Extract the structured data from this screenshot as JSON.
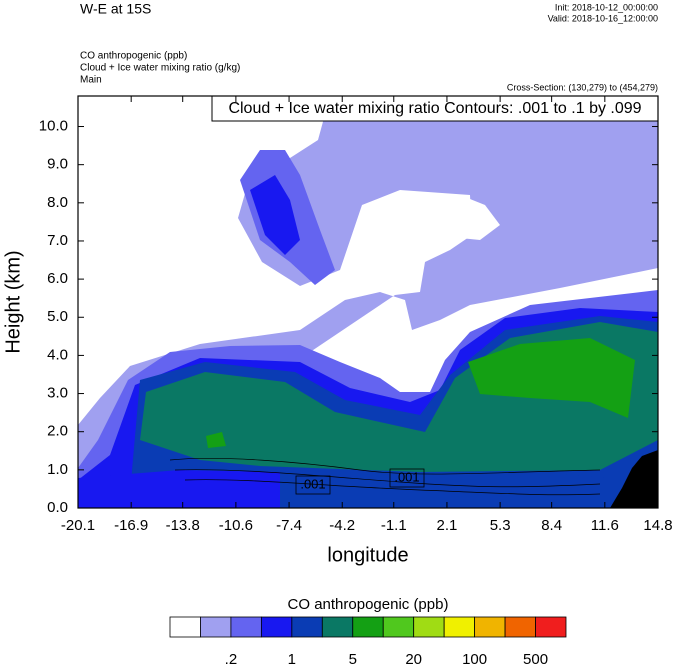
{
  "chart_data": {
    "type": "contour",
    "title": "W-E at 15S",
    "init": "Init: 2018-10-12_00:00:00",
    "valid": "Valid: 2018-10-16_12:00:00",
    "fields": [
      "CO anthropogenic   (ppb)",
      "Cloud + Ice water mixing ratio   (g/kg)",
      "Main"
    ],
    "cross_section": "Cross-Section: (130,279) to (454,279)",
    "contour_info": "Cloud + Ice water mixing ratio Contours: .001 to .1 by .099",
    "contour_line_labels": [
      ".001",
      ".001"
    ],
    "xlabel": "longitude",
    "ylabel": "Height (km)",
    "xlim": [
      -20.1,
      14.8
    ],
    "xticks": [
      -20.1,
      -16.9,
      -13.8,
      -10.6,
      -7.4,
      -4.2,
      -1.1,
      2.1,
      5.3,
      8.4,
      11.6,
      14.8
    ],
    "ylim": [
      0,
      10.8
    ],
    "yticks": [
      {
        "value": 0,
        "label": "0.0"
      },
      {
        "value": 1,
        "label": "1.0"
      },
      {
        "value": 2,
        "label": "2.0"
      },
      {
        "value": 3,
        "label": "3.0"
      },
      {
        "value": 4,
        "label": "4.0"
      },
      {
        "value": 5,
        "label": "5.0"
      },
      {
        "value": 6,
        "label": "6.0"
      },
      {
        "value": 7,
        "label": "7.0"
      },
      {
        "value": 8,
        "label": "8.0"
      },
      {
        "value": 9,
        "label": "9.0"
      },
      {
        "value": 10,
        "label": "10.0"
      }
    ],
    "colorbar": {
      "title": "CO anthropogenic  (ppb)",
      "colors": [
        "#ffffff",
        "#a0a0f0",
        "#6464f0",
        "#1818f0",
        "#0a3cb4",
        "#0a7864",
        "#14a014",
        "#50c81e",
        "#a0dc14",
        "#f0f000",
        "#f0b400",
        "#f06400",
        "#f01e1e"
      ],
      "ticks": [
        {
          "value": 0.2,
          "label": ".2"
        },
        1,
        5,
        20,
        100,
        500
      ]
    }
  }
}
